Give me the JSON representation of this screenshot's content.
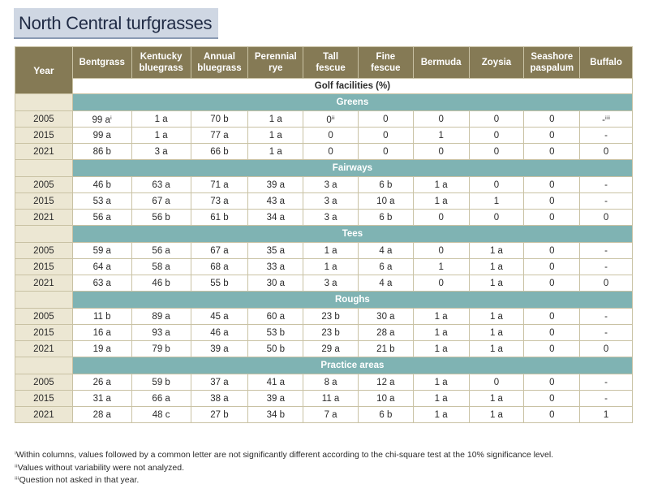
{
  "title": "North Central turfgrasses",
  "year_header": "Year",
  "columns": [
    [
      "Bentgrass"
    ],
    [
      "Kentucky",
      "bluegrass"
    ],
    [
      "Annual",
      "bluegrass"
    ],
    [
      "Perennial",
      "rye"
    ],
    [
      "Tall",
      "fescue"
    ],
    [
      "Fine",
      "fescue"
    ],
    [
      "Bermuda"
    ],
    [
      "Zoysia"
    ],
    [
      "Seashore",
      "paspalum"
    ],
    [
      "Buffalo"
    ]
  ],
  "facilities_label": "Golf facilities (%)",
  "sections": [
    {
      "name": "Greens",
      "rows": [
        {
          "year": "2005",
          "values": [
            "99 aⁱ",
            "1 a",
            "70 b",
            "1 a",
            "0ⁱⁱ",
            "0",
            "0",
            "0",
            "0",
            "-ⁱⁱⁱ"
          ]
        },
        {
          "year": "2015",
          "values": [
            "99 a",
            "1 a",
            "77 a",
            "1 a",
            "0",
            "0",
            "1",
            "0",
            "0",
            "-"
          ]
        },
        {
          "year": "2021",
          "values": [
            "86 b",
            "3 a",
            "66 b",
            "1 a",
            "0",
            "0",
            "0",
            "0",
            "0",
            "0"
          ]
        }
      ]
    },
    {
      "name": "Fairways",
      "rows": [
        {
          "year": "2005",
          "values": [
            "46 b",
            "63 a",
            "71 a",
            "39 a",
            "3 a",
            "6 b",
            "1 a",
            "0",
            "0",
            "-"
          ]
        },
        {
          "year": "2015",
          "values": [
            "53 a",
            "67 a",
            "73 a",
            "43 a",
            "3 a",
            "10 a",
            "1 a",
            "1",
            "0",
            "-"
          ]
        },
        {
          "year": "2021",
          "values": [
            "56 a",
            "56 b",
            "61 b",
            "34 a",
            "3 a",
            "6 b",
            "0",
            "0",
            "0",
            "0"
          ]
        }
      ]
    },
    {
      "name": "Tees",
      "rows": [
        {
          "year": "2005",
          "values": [
            "59 a",
            "56 a",
            "67 a",
            "35 a",
            "1 a",
            "4 a",
            "0",
            "1 a",
            "0",
            "-"
          ]
        },
        {
          "year": "2015",
          "values": [
            "64 a",
            "58 a",
            "68 a",
            "33 a",
            "1 a",
            "6 a",
            "1",
            "1 a",
            "0",
            "-"
          ]
        },
        {
          "year": "2021",
          "values": [
            "63 a",
            "46 b",
            "55 b",
            "30 a",
            "3 a",
            "4 a",
            "0",
            "1 a",
            "0",
            "0"
          ]
        }
      ]
    },
    {
      "name": "Roughs",
      "rows": [
        {
          "year": "2005",
          "values": [
            "11 b",
            "89 a",
            "45 a",
            "60 a",
            "23 b",
            "30 a",
            "1 a",
            "1 a",
            "0",
            "-"
          ]
        },
        {
          "year": "2015",
          "values": [
            "16 a",
            "93 a",
            "46 a",
            "53 b",
            "23 b",
            "28 a",
            "1 a",
            "1 a",
            "0",
            "-"
          ]
        },
        {
          "year": "2021",
          "values": [
            "19 a",
            "79 b",
            "39 a",
            "50 b",
            "29 a",
            "21 b",
            "1 a",
            "1 a",
            "0",
            "0"
          ]
        }
      ]
    },
    {
      "name": "Practice areas",
      "rows": [
        {
          "year": "2005",
          "values": [
            "26 a",
            "59 b",
            "37 a",
            "41 a",
            "8 a",
            "12 a",
            "1 a",
            "0",
            "0",
            "-"
          ]
        },
        {
          "year": "2015",
          "values": [
            "31 a",
            "66 a",
            "38 a",
            "39 a",
            "11 a",
            "10 a",
            "1 a",
            "1 a",
            "0",
            "-"
          ]
        },
        {
          "year": "2021",
          "values": [
            "28 a",
            "48 c",
            "27 b",
            "34 b",
            "7 a",
            "6 b",
            "1 a",
            "1 a",
            "0",
            "1"
          ]
        }
      ]
    }
  ],
  "footnotes": [
    "ⁱWithin columns, values followed by a common letter are not significantly different according to the chi-square test at the 10% significance level.",
    "ⁱⁱValues without variability were not analyzed.",
    "ⁱⁱⁱQuestion not asked in that year."
  ],
  "colors": {
    "header_bg": "#857a55",
    "section_bg": "#7fb3b3",
    "year_bg": "#ece7d3",
    "title_bg": "#cfd7e3"
  }
}
